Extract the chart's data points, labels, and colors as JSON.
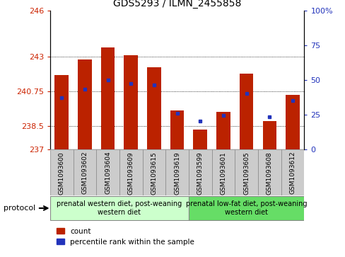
{
  "title": "GDS5293 / ILMN_2455858",
  "samples": [
    "GSM1093600",
    "GSM1093602",
    "GSM1093604",
    "GSM1093609",
    "GSM1093615",
    "GSM1093619",
    "GSM1093599",
    "GSM1093601",
    "GSM1093605",
    "GSM1093608",
    "GSM1093612"
  ],
  "count_values": [
    241.8,
    242.8,
    243.6,
    243.1,
    242.3,
    239.5,
    238.25,
    239.4,
    241.9,
    238.8,
    240.5
  ],
  "percentile_values": [
    37,
    43,
    50,
    47,
    46,
    26,
    20,
    24,
    40,
    23,
    35
  ],
  "ylim_left": [
    237,
    246
  ],
  "ylim_right": [
    0,
    100
  ],
  "yticks_left": [
    237,
    238.5,
    240.75,
    243,
    246
  ],
  "yticks_right": [
    0,
    25,
    50,
    75,
    100
  ],
  "bar_color": "#bb2200",
  "dot_color": "#2233bb",
  "bar_width": 0.6,
  "group1_label": "prenatal western diet, post-weaning\nwestern diet",
  "group2_label": "prenatal low-fat diet, post-weaning\nwestern diet",
  "group1_color": "#ccffcc",
  "group2_color": "#66dd66",
  "group1_indices": [
    0,
    1,
    2,
    3,
    4,
    5
  ],
  "group2_indices": [
    6,
    7,
    8,
    9,
    10
  ],
  "protocol_label": "protocol",
  "legend_count_label": "count",
  "legend_percentile_label": "percentile rank within the sample",
  "bg_color": "#ffffff",
  "tick_label_color_left": "#cc2200",
  "tick_label_color_right": "#2233bb",
  "xtick_bg_color": "#cccccc"
}
